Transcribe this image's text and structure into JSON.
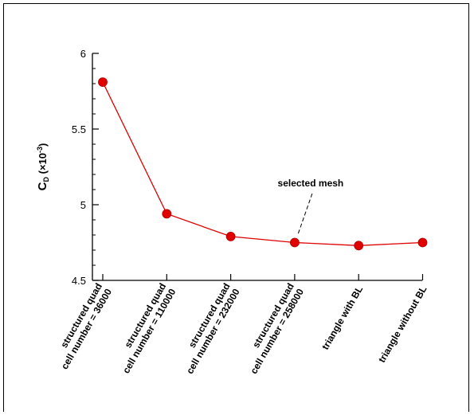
{
  "chart_data": {
    "type": "line",
    "categories": [
      [
        "structured quad",
        "cell number = 36000"
      ],
      [
        "structured quad",
        "cell number = 110000"
      ],
      [
        "structured quad",
        "cell number = 232000"
      ],
      [
        "structured quad",
        "cell number = 258000"
      ],
      [
        "triangle with BL"
      ],
      [
        "triangle without BL"
      ]
    ],
    "series": [
      {
        "values": [
          5.81,
          4.94,
          4.79,
          4.75,
          4.73,
          4.75
        ],
        "color": "#e00000"
      }
    ],
    "ylabel": {
      "main": "C",
      "sub": "D",
      "paren_open": " (×10",
      "sup": "-3",
      "paren_close": ")"
    },
    "ylim": [
      4.5,
      6.0
    ],
    "yticks": [
      "4.5",
      "5",
      "5.5",
      "6"
    ],
    "annotation": {
      "text": "selected mesh",
      "category_index": 3
    },
    "grid": false,
    "legend": "none"
  }
}
